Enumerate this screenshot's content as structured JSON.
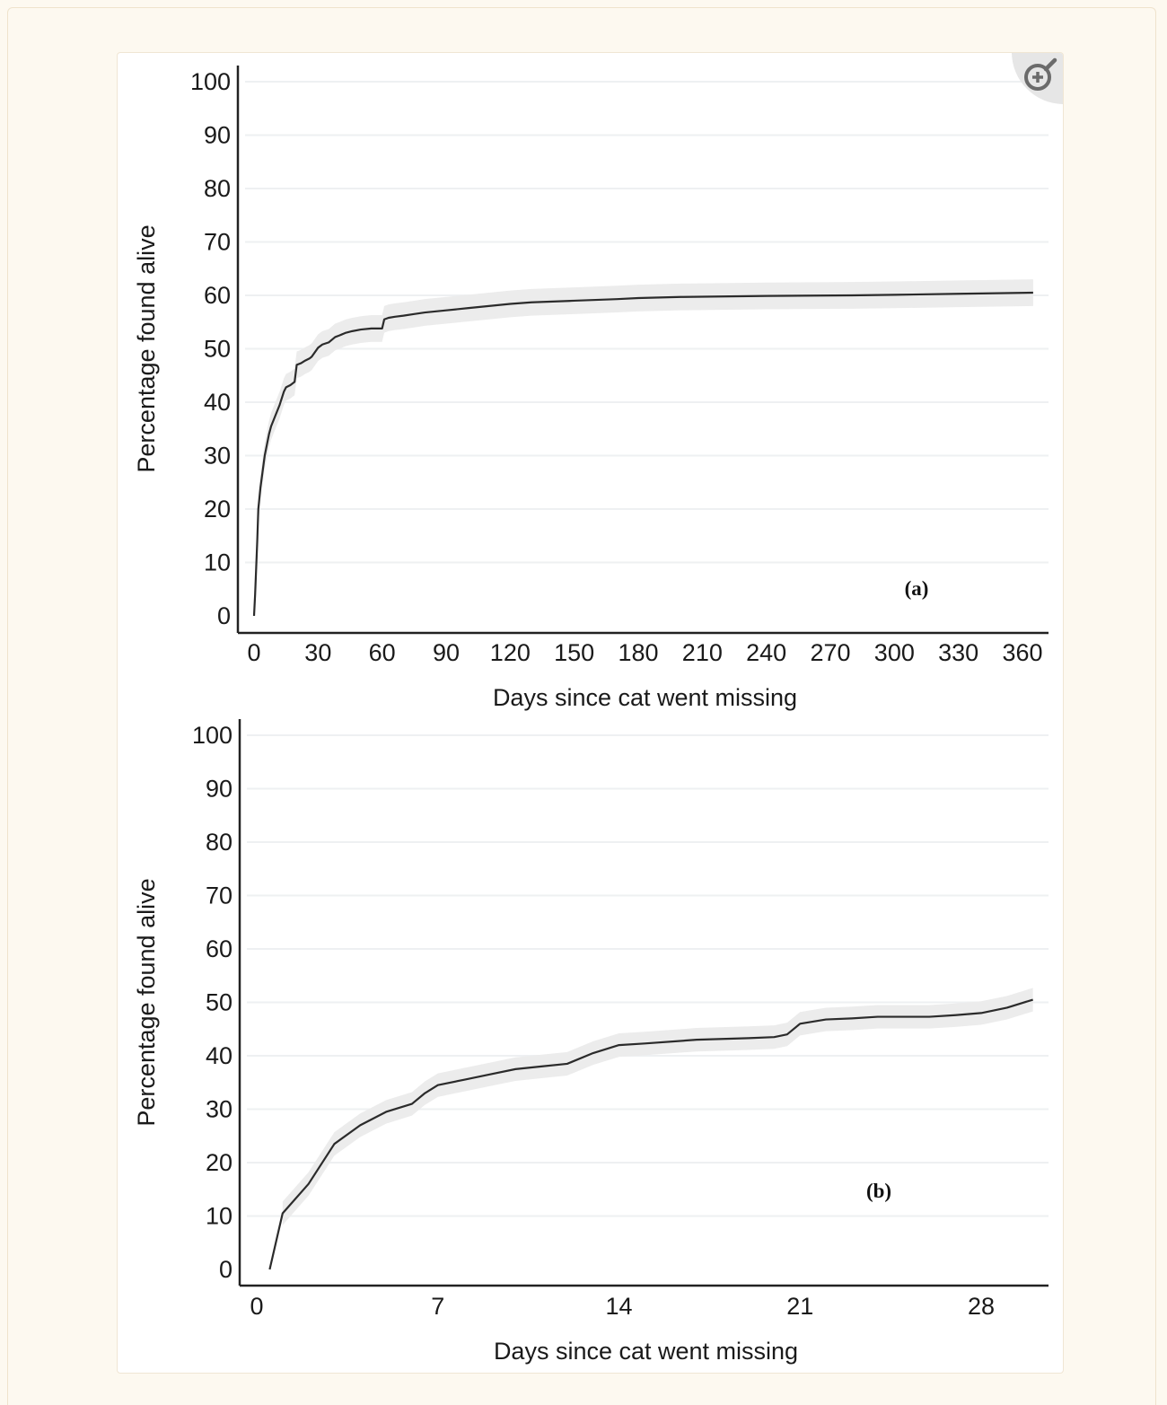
{
  "zoom": {
    "icon": "zoom-in-icon"
  },
  "chart_data": [
    {
      "type": "line",
      "panel_label": "(a)",
      "xlabel": "Days since cat went missing",
      "ylabel": "Percentage found alive",
      "xlim": [
        0,
        365
      ],
      "ylim": [
        0,
        100
      ],
      "xticks": [
        0,
        30,
        60,
        90,
        120,
        150,
        180,
        210,
        240,
        270,
        300,
        330,
        360
      ],
      "yticks": [
        0,
        10,
        20,
        30,
        40,
        50,
        60,
        70,
        80,
        90,
        100
      ],
      "grid": "horizontal",
      "confidence_band": true,
      "colors": {
        "line": "#2b2b2b",
        "band": "#ececec",
        "grid": "#eef0f2",
        "axis": "#222222"
      },
      "x": [
        0,
        0.5,
        1,
        1.5,
        2,
        3,
        4,
        5,
        6,
        7,
        8,
        10,
        12,
        14,
        15,
        17,
        19,
        20,
        22,
        24,
        26,
        27,
        30,
        32,
        35,
        38,
        40,
        43,
        46,
        50,
        55,
        57,
        60,
        61,
        63,
        66,
        70,
        75,
        80,
        90,
        100,
        110,
        120,
        130,
        150,
        170,
        180,
        200,
        240,
        280,
        300,
        330,
        365
      ],
      "y": [
        0,
        4,
        9,
        14,
        20,
        24,
        27,
        30,
        32,
        34,
        35.5,
        37.5,
        39.5,
        42,
        42.8,
        43.2,
        43.8,
        47,
        47.3,
        47.8,
        48.2,
        48.5,
        50.2,
        50.8,
        51.2,
        52.2,
        52.5,
        53,
        53.3,
        53.6,
        53.8,
        53.8,
        53.8,
        55.5,
        55.8,
        56,
        56.2,
        56.5,
        56.8,
        57.2,
        57.6,
        58,
        58.4,
        58.7,
        59,
        59.3,
        59.5,
        59.7,
        59.9,
        60,
        60.1,
        60.3,
        60.5
      ],
      "band_halfwidth": 2.5
    },
    {
      "type": "line",
      "panel_label": "(b)",
      "xlabel": "Days since cat went missing",
      "ylabel": "Percentage found alive",
      "xlim": [
        0,
        30
      ],
      "ylim": [
        0,
        100
      ],
      "xticks": [
        0,
        7,
        14,
        21,
        28
      ],
      "yticks": [
        0,
        10,
        20,
        30,
        40,
        50,
        60,
        70,
        80,
        90,
        100
      ],
      "grid": "horizontal",
      "confidence_band": true,
      "colors": {
        "line": "#2b2b2b",
        "band": "#ececec",
        "grid": "#eef0f2",
        "axis": "#222222"
      },
      "x": [
        0.5,
        1,
        2,
        3,
        4,
        5,
        6,
        6.5,
        7,
        8,
        9,
        10,
        11,
        12,
        13,
        14,
        15,
        17,
        19,
        20,
        20.5,
        21,
        22,
        23,
        24,
        25,
        26,
        27,
        28,
        29,
        30
      ],
      "y": [
        0,
        10.5,
        16,
        23.5,
        27,
        29.5,
        31,
        33,
        34.5,
        35.5,
        36.5,
        37.5,
        38,
        38.5,
        40.5,
        42,
        42.3,
        43,
        43.3,
        43.5,
        44,
        46,
        46.8,
        47,
        47.3,
        47.3,
        47.3,
        47.6,
        48,
        49,
        50.5
      ],
      "band_halfwidth": 2.2
    }
  ]
}
